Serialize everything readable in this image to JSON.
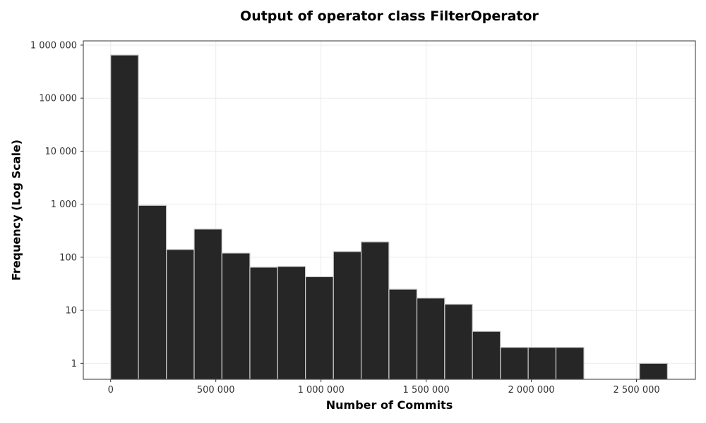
{
  "chart_data": {
    "type": "bar",
    "title": "Output of operator class FilterOperator",
    "xlabel": "Number of Commits",
    "ylabel": "Frequency (Log Scale)",
    "y_scale": "log",
    "xlim": [
      -130000,
      2780000
    ],
    "ylim": [
      0.5,
      1200000
    ],
    "grid": true,
    "bar_color": "#262626",
    "bar_edge_color": "#cccccc",
    "x_ticks": [
      0,
      500000,
      1000000,
      1500000,
      2000000,
      2500000
    ],
    "x_tick_labels": [
      "0",
      "500 000",
      "1 000 000",
      "1 500 000",
      "2 000 000",
      "2 500 000"
    ],
    "y_ticks": [
      1,
      10,
      100,
      1000,
      10000,
      100000,
      1000000
    ],
    "y_tick_labels": [
      "1",
      "10",
      "100",
      "1 000",
      "10 000",
      "100 000",
      "1 000 000"
    ],
    "bins": [
      {
        "x0": 0,
        "x1": 132000,
        "value": 650000
      },
      {
        "x0": 132000,
        "x1": 265000,
        "value": 950
      },
      {
        "x0": 265000,
        "x1": 397000,
        "value": 140
      },
      {
        "x0": 397000,
        "x1": 529000,
        "value": 340
      },
      {
        "x0": 529000,
        "x1": 662000,
        "value": 120
      },
      {
        "x0": 662000,
        "x1": 794000,
        "value": 65
      },
      {
        "x0": 794000,
        "x1": 926000,
        "value": 67
      },
      {
        "x0": 926000,
        "x1": 1059000,
        "value": 43
      },
      {
        "x0": 1059000,
        "x1": 1191000,
        "value": 128
      },
      {
        "x0": 1191000,
        "x1": 1323000,
        "value": 195
      },
      {
        "x0": 1323000,
        "x1": 1456000,
        "value": 25
      },
      {
        "x0": 1456000,
        "x1": 1588000,
        "value": 17
      },
      {
        "x0": 1588000,
        "x1": 1720000,
        "value": 13
      },
      {
        "x0": 1720000,
        "x1": 1853000,
        "value": 4
      },
      {
        "x0": 1853000,
        "x1": 1985000,
        "value": 2
      },
      {
        "x0": 1985000,
        "x1": 2117000,
        "value": 2
      },
      {
        "x0": 2117000,
        "x1": 2250000,
        "value": 2
      },
      {
        "x0": 2250000,
        "x1": 2382000,
        "value": 0
      },
      {
        "x0": 2382000,
        "x1": 2514000,
        "value": 0
      },
      {
        "x0": 2514000,
        "x1": 2647000,
        "value": 1
      }
    ]
  }
}
